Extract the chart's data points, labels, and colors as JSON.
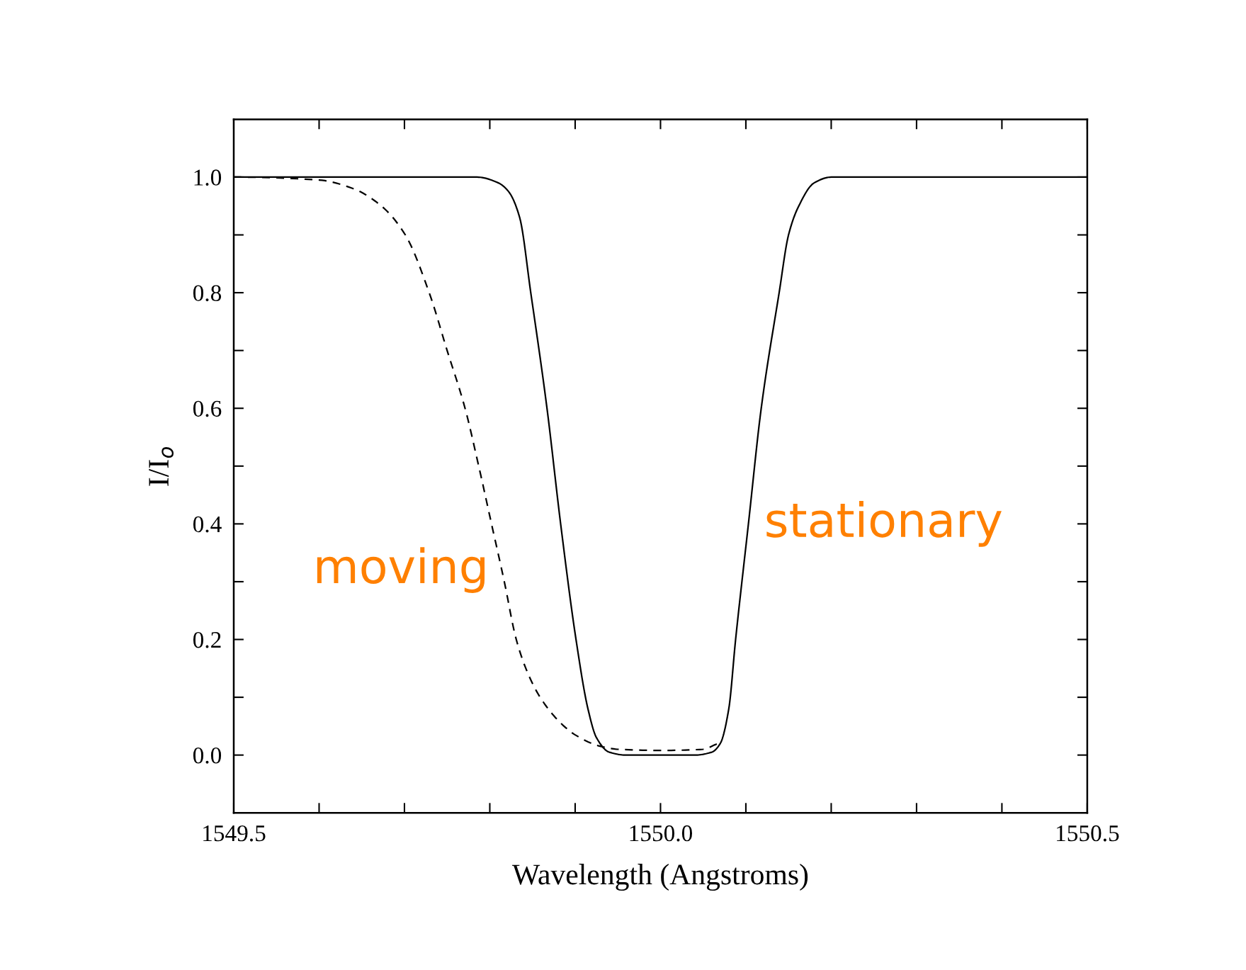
{
  "chart_data": {
    "type": "line",
    "xlabel": "Wavelength (Angstroms)",
    "ylabel": "I/I$_{o}$",
    "xlim": [
      1549.5,
      1550.5
    ],
    "xticks": [
      {
        "value": 1549.5,
        "label": "1549.5"
      },
      {
        "value": 1549.6,
        "label": null
      },
      {
        "value": 1549.7,
        "label": null
      },
      {
        "value": 1549.8,
        "label": null
      },
      {
        "value": 1549.9,
        "label": null
      },
      {
        "value": 1550.0,
        "label": "1550.0"
      },
      {
        "value": 1550.1,
        "label": null
      },
      {
        "value": 1550.2,
        "label": null
      },
      {
        "value": 1550.3,
        "label": null
      },
      {
        "value": 1550.4,
        "label": null
      },
      {
        "value": 1550.5,
        "label": "1550.5"
      }
    ],
    "ylim": [
      -0.1,
      1.1
    ],
    "yticks": [
      {
        "value": 0.0,
        "label": "0.0"
      },
      {
        "value": 0.1,
        "label": null
      },
      {
        "value": 0.2,
        "label": "0.2"
      },
      {
        "value": 0.3,
        "label": null
      },
      {
        "value": 0.4,
        "label": "0.4"
      },
      {
        "value": 0.5,
        "label": null
      },
      {
        "value": 0.6,
        "label": "0.6"
      },
      {
        "value": 0.7,
        "label": null
      },
      {
        "value": 0.8,
        "label": "0.8"
      },
      {
        "value": 0.9,
        "label": null
      },
      {
        "value": 1.0,
        "label": "1.0"
      }
    ],
    "grid": false,
    "marker": "none",
    "annotations": [
      {
        "text": "moving",
        "x": 1549.815,
        "y": 0.32
      },
      {
        "text": "stationary",
        "x": 1550.103,
        "y": 0.4
      }
    ],
    "series": [
      {
        "color": "#000000",
        "line_style": "solid",
        "x": [
          1549.5,
          1549.75,
          1549.785,
          1549.81,
          1549.822,
          1549.835,
          1549.848,
          1549.867,
          1549.883,
          1549.901,
          1549.915,
          1549.925,
          1549.94,
          1549.96,
          1550.04,
          1550.06,
          1550.07,
          1550.08,
          1550.088,
          1550.103,
          1550.118,
          1550.139,
          1550.15,
          1550.162,
          1550.18,
          1550.2,
          1550.5
        ],
        "values": [
          1.0,
          1.0,
          1.0,
          0.99,
          0.975,
          0.93,
          0.8,
          0.6,
          0.4,
          0.2,
          0.08,
          0.03,
          0.005,
          0.0,
          0.0,
          0.005,
          0.02,
          0.08,
          0.2,
          0.4,
          0.6,
          0.8,
          0.9,
          0.95,
          0.99,
          1.0,
          1.0
        ]
      },
      {
        "color": "#000000",
        "line_style": "dashed",
        "x": [
          1549.5,
          1549.6,
          1549.64,
          1549.673,
          1549.701,
          1549.729,
          1549.75,
          1549.771,
          1549.787,
          1549.802,
          1549.817,
          1549.831,
          1549.845,
          1549.859,
          1549.88,
          1549.9,
          1549.93,
          1549.95,
          1550.0,
          1550.05,
          1550.07
        ],
        "values": [
          1.0,
          0.995,
          0.98,
          0.95,
          0.9,
          0.8,
          0.7,
          0.6,
          0.5,
          0.4,
          0.3,
          0.2,
          0.14,
          0.1,
          0.06,
          0.035,
          0.015,
          0.01,
          0.008,
          0.01,
          0.02
        ]
      }
    ]
  }
}
